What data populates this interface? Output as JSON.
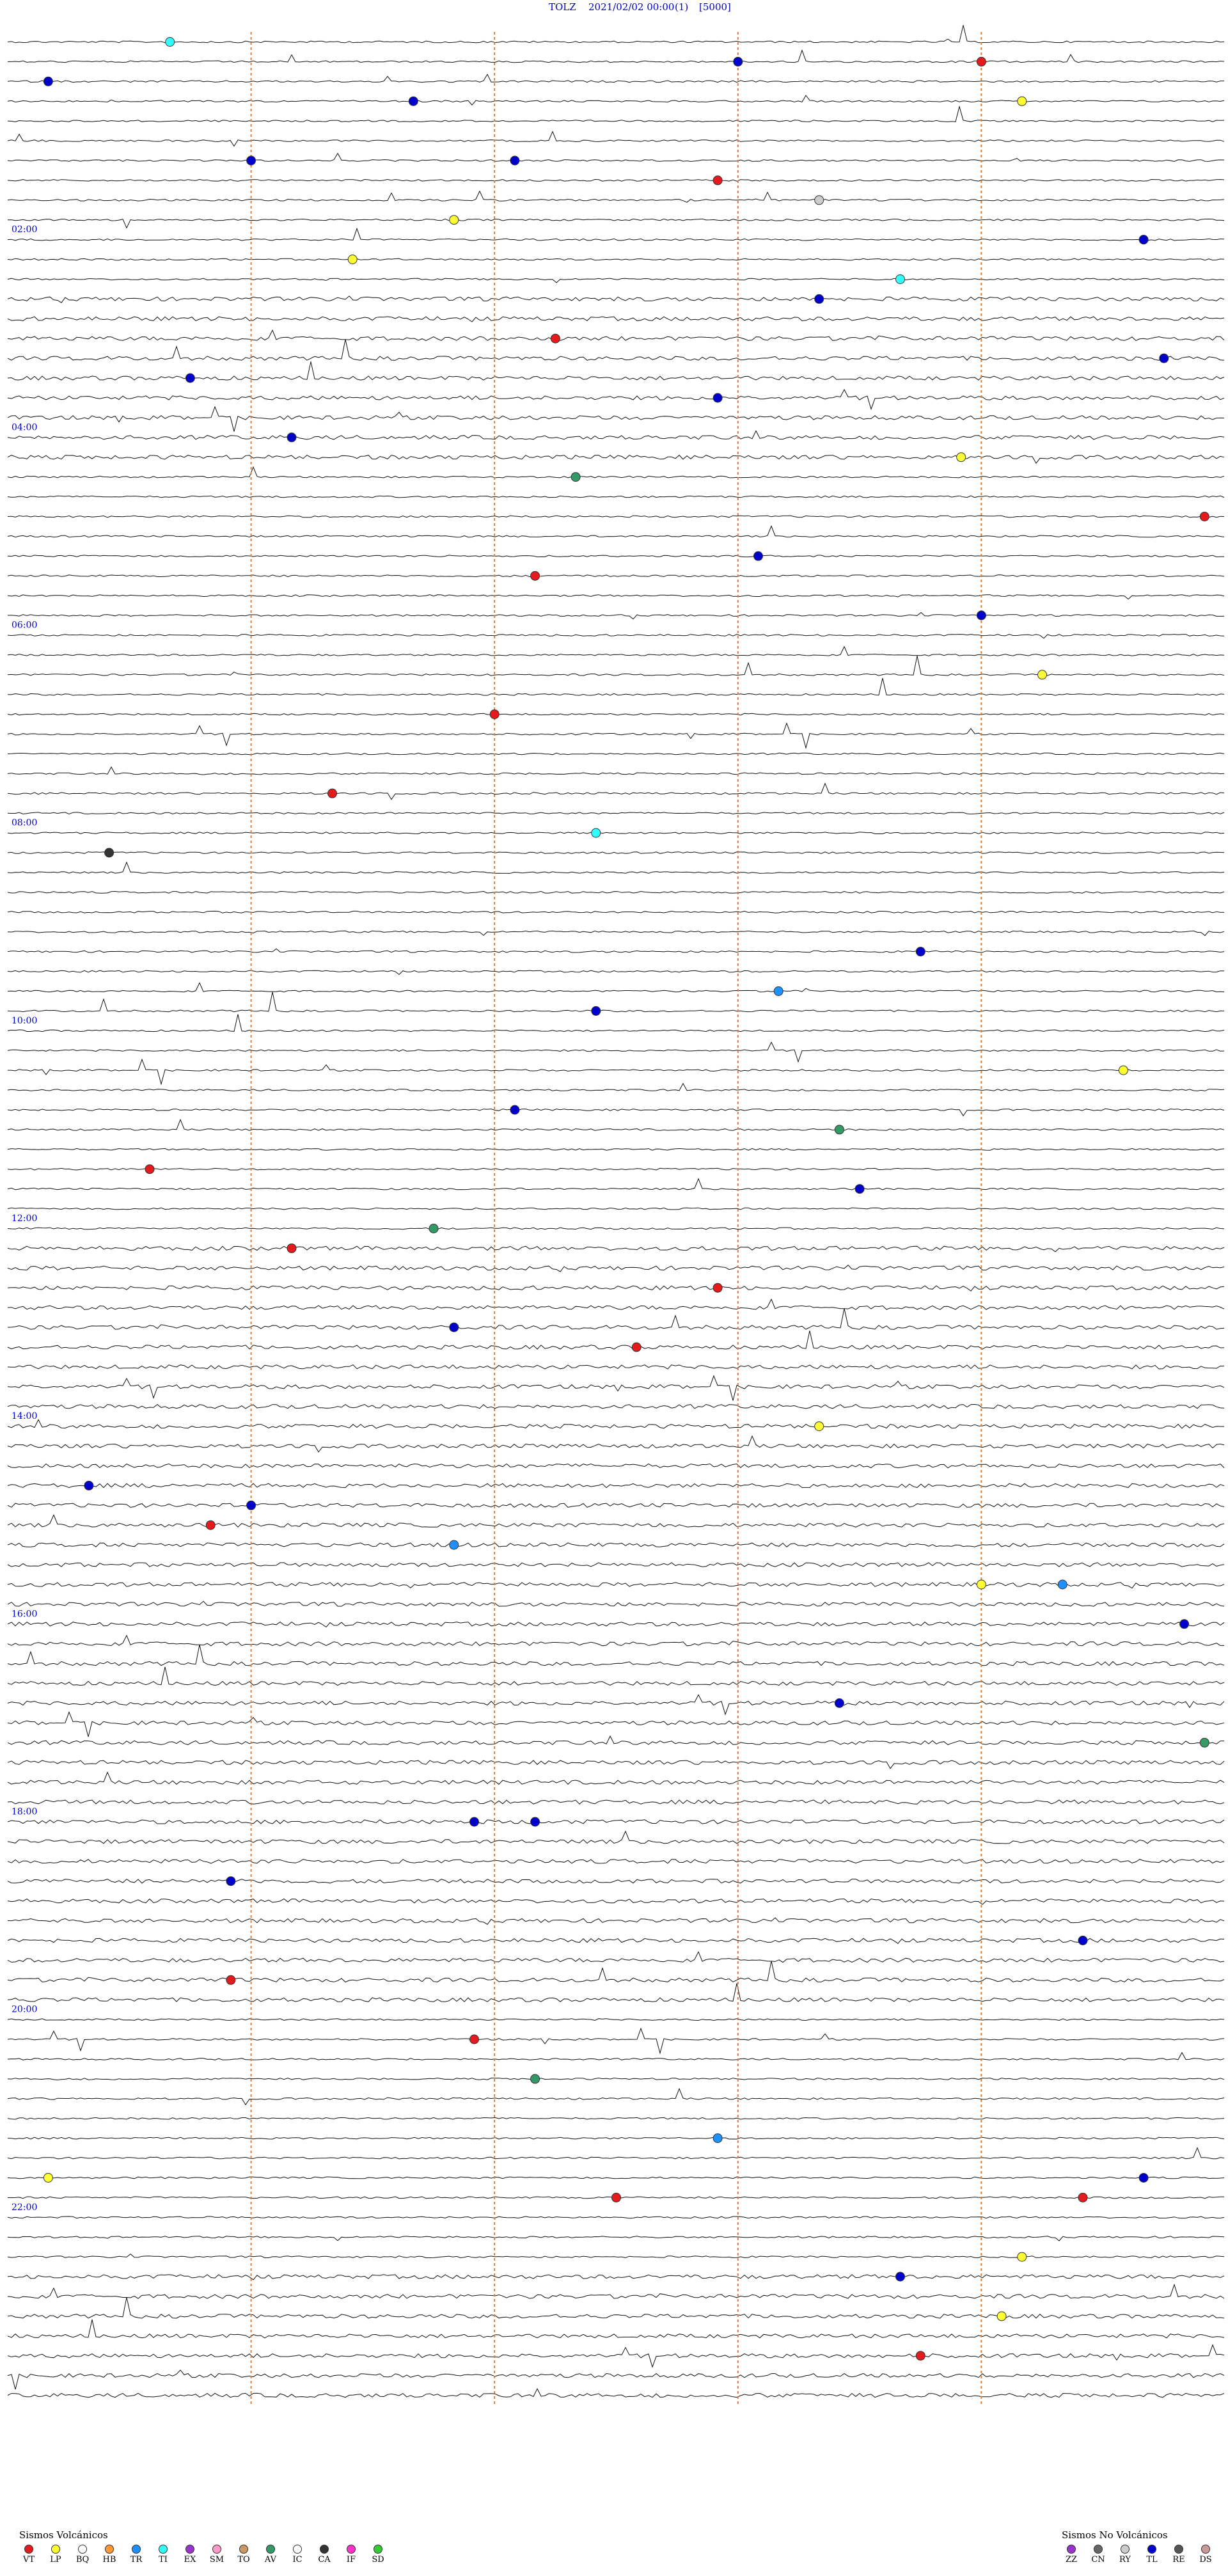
{
  "header": {
    "station": "TOLZ",
    "datetime": "2021/02/02 00:00",
    "channel": "(1)",
    "scale": "[5000]"
  },
  "time_labels": [
    "02:00",
    "04:00",
    "06:00",
    "08:00",
    "10:00",
    "12:00",
    "14:00",
    "16:00",
    "18:00",
    "20:00",
    "22:00"
  ],
  "legend_volcanic": {
    "title": "Sismos Volcánicos",
    "items": [
      {
        "code": "VT",
        "color": "#e41a1c"
      },
      {
        "code": "LP",
        "color": "#ffff33"
      },
      {
        "code": "BQ",
        "color": "#ffffff"
      },
      {
        "code": "HB",
        "color": "#ff9933"
      },
      {
        "code": "TR",
        "color": "#1e90ff"
      },
      {
        "code": "TI",
        "color": "#33ffff"
      },
      {
        "code": "EX",
        "color": "#9933cc"
      },
      {
        "code": "SM",
        "color": "#ff99cc"
      },
      {
        "code": "TO",
        "color": "#cc9966"
      },
      {
        "code": "AV",
        "color": "#339966"
      },
      {
        "code": "IC",
        "color": "#ffffff"
      },
      {
        "code": "CA",
        "color": "#333333"
      },
      {
        "code": "IF",
        "color": "#ff33cc"
      },
      {
        "code": "SD",
        "color": "#33cc33"
      }
    ]
  },
  "legend_nonvolcanic": {
    "title": "Sismos No Volcánicos",
    "items": [
      {
        "code": "ZZ",
        "color": "#9933cc"
      },
      {
        "code": "CN",
        "color": "#666666"
      },
      {
        "code": "RY",
        "color": "#cccccc"
      },
      {
        "code": "TL",
        "color": "#0000cc"
      },
      {
        "code": "RE",
        "color": "#555555"
      },
      {
        "code": "DS",
        "color": "#cc9999"
      }
    ]
  },
  "chart_data": {
    "type": "helicorder",
    "rows_per_hour": 5,
    "hours": 24,
    "traces_total": 120,
    "markers": [
      {
        "row": 0,
        "minute": 8,
        "code": "TI"
      },
      {
        "row": 1,
        "minute": 36,
        "code": "TL"
      },
      {
        "row": 1,
        "minute": 48,
        "code": "VT"
      },
      {
        "row": 2,
        "minute": 2,
        "code": "TL"
      },
      {
        "row": 3,
        "minute": 50,
        "code": "LP"
      },
      {
        "row": 3,
        "minute": 20,
        "code": "TL"
      },
      {
        "row": 6,
        "minute": 12,
        "code": "TL"
      },
      {
        "row": 6,
        "minute": 25,
        "code": "TL"
      },
      {
        "row": 7,
        "minute": 35,
        "code": "VT"
      },
      {
        "row": 8,
        "minute": 40,
        "code": "RY"
      },
      {
        "row": 9,
        "minute": 22,
        "code": "LP"
      },
      {
        "row": 10,
        "minute": 56,
        "code": "TL"
      },
      {
        "row": 11,
        "minute": 17,
        "code": "LP"
      },
      {
        "row": 12,
        "minute": 44,
        "code": "TI"
      },
      {
        "row": 13,
        "minute": 40,
        "code": "TL"
      },
      {
        "row": 15,
        "minute": 27,
        "code": "VT"
      },
      {
        "row": 16,
        "minute": 57,
        "code": "TL"
      },
      {
        "row": 17,
        "minute": 9,
        "code": "TL"
      },
      {
        "row": 18,
        "minute": 35,
        "code": "TL"
      },
      {
        "row": 20,
        "minute": 14,
        "code": "TL"
      },
      {
        "row": 21,
        "minute": 47,
        "code": "LP"
      },
      {
        "row": 22,
        "minute": 28,
        "code": "AV"
      },
      {
        "row": 24,
        "minute": 59,
        "code": "VT"
      },
      {
        "row": 26,
        "minute": 37,
        "code": "TL"
      },
      {
        "row": 27,
        "minute": 26,
        "code": "VT"
      },
      {
        "row": 29,
        "minute": 48,
        "code": "TL"
      },
      {
        "row": 32,
        "minute": 51,
        "code": "LP"
      },
      {
        "row": 34,
        "minute": 24,
        "code": "VT"
      },
      {
        "row": 38,
        "minute": 16,
        "code": "VT"
      },
      {
        "row": 40,
        "minute": 29,
        "code": "TI"
      },
      {
        "row": 41,
        "minute": 5,
        "code": "CA"
      },
      {
        "row": 46,
        "minute": 45,
        "code": "TL"
      },
      {
        "row": 48,
        "minute": 38,
        "code": "TR"
      },
      {
        "row": 49,
        "minute": 29,
        "code": "TL"
      },
      {
        "row": 52,
        "minute": 55,
        "code": "LP"
      },
      {
        "row": 54,
        "minute": 25,
        "code": "TL"
      },
      {
        "row": 55,
        "minute": 41,
        "code": "AV"
      },
      {
        "row": 57,
        "minute": 7,
        "code": "VT"
      },
      {
        "row": 58,
        "minute": 42,
        "code": "TL"
      },
      {
        "row": 60,
        "minute": 21,
        "code": "AV"
      },
      {
        "row": 61,
        "minute": 14,
        "code": "VT"
      },
      {
        "row": 63,
        "minute": 35,
        "code": "VT"
      },
      {
        "row": 65,
        "minute": 22,
        "code": "TL"
      },
      {
        "row": 66,
        "minute": 31,
        "code": "VT"
      },
      {
        "row": 70,
        "minute": 40,
        "code": "LP"
      },
      {
        "row": 73,
        "minute": 4,
        "code": "TL"
      },
      {
        "row": 74,
        "minute": 12,
        "code": "TL"
      },
      {
        "row": 75,
        "minute": 10,
        "code": "VT"
      },
      {
        "row": 76,
        "minute": 22,
        "code": "TR"
      },
      {
        "row": 78,
        "minute": 52,
        "code": "TR"
      },
      {
        "row": 78,
        "minute": 48,
        "code": "LP"
      },
      {
        "row": 80,
        "minute": 58,
        "code": "TL"
      },
      {
        "row": 84,
        "minute": 41,
        "code": "TL"
      },
      {
        "row": 86,
        "minute": 59,
        "code": "AV"
      },
      {
        "row": 90,
        "minute": 23,
        "code": "TL"
      },
      {
        "row": 90,
        "minute": 26,
        "code": "TL"
      },
      {
        "row": 93,
        "minute": 11,
        "code": "TL"
      },
      {
        "row": 96,
        "minute": 53,
        "code": "TL"
      },
      {
        "row": 98,
        "minute": 11,
        "code": "VT"
      },
      {
        "row": 101,
        "minute": 23,
        "code": "VT"
      },
      {
        "row": 103,
        "minute": 26,
        "code": "AV"
      },
      {
        "row": 106,
        "minute": 35,
        "code": "TR"
      },
      {
        "row": 108,
        "minute": 2,
        "code": "LP"
      },
      {
        "row": 108,
        "minute": 56,
        "code": "TL"
      },
      {
        "row": 109,
        "minute": 53,
        "code": "VT"
      },
      {
        "row": 109,
        "minute": 30,
        "code": "VT"
      },
      {
        "row": 112,
        "minute": 50,
        "code": "LP"
      },
      {
        "row": 113,
        "minute": 44,
        "code": "TL"
      },
      {
        "row": 115,
        "minute": 49,
        "code": "LP"
      },
      {
        "row": 117,
        "minute": 45,
        "code": "VT"
      }
    ]
  }
}
